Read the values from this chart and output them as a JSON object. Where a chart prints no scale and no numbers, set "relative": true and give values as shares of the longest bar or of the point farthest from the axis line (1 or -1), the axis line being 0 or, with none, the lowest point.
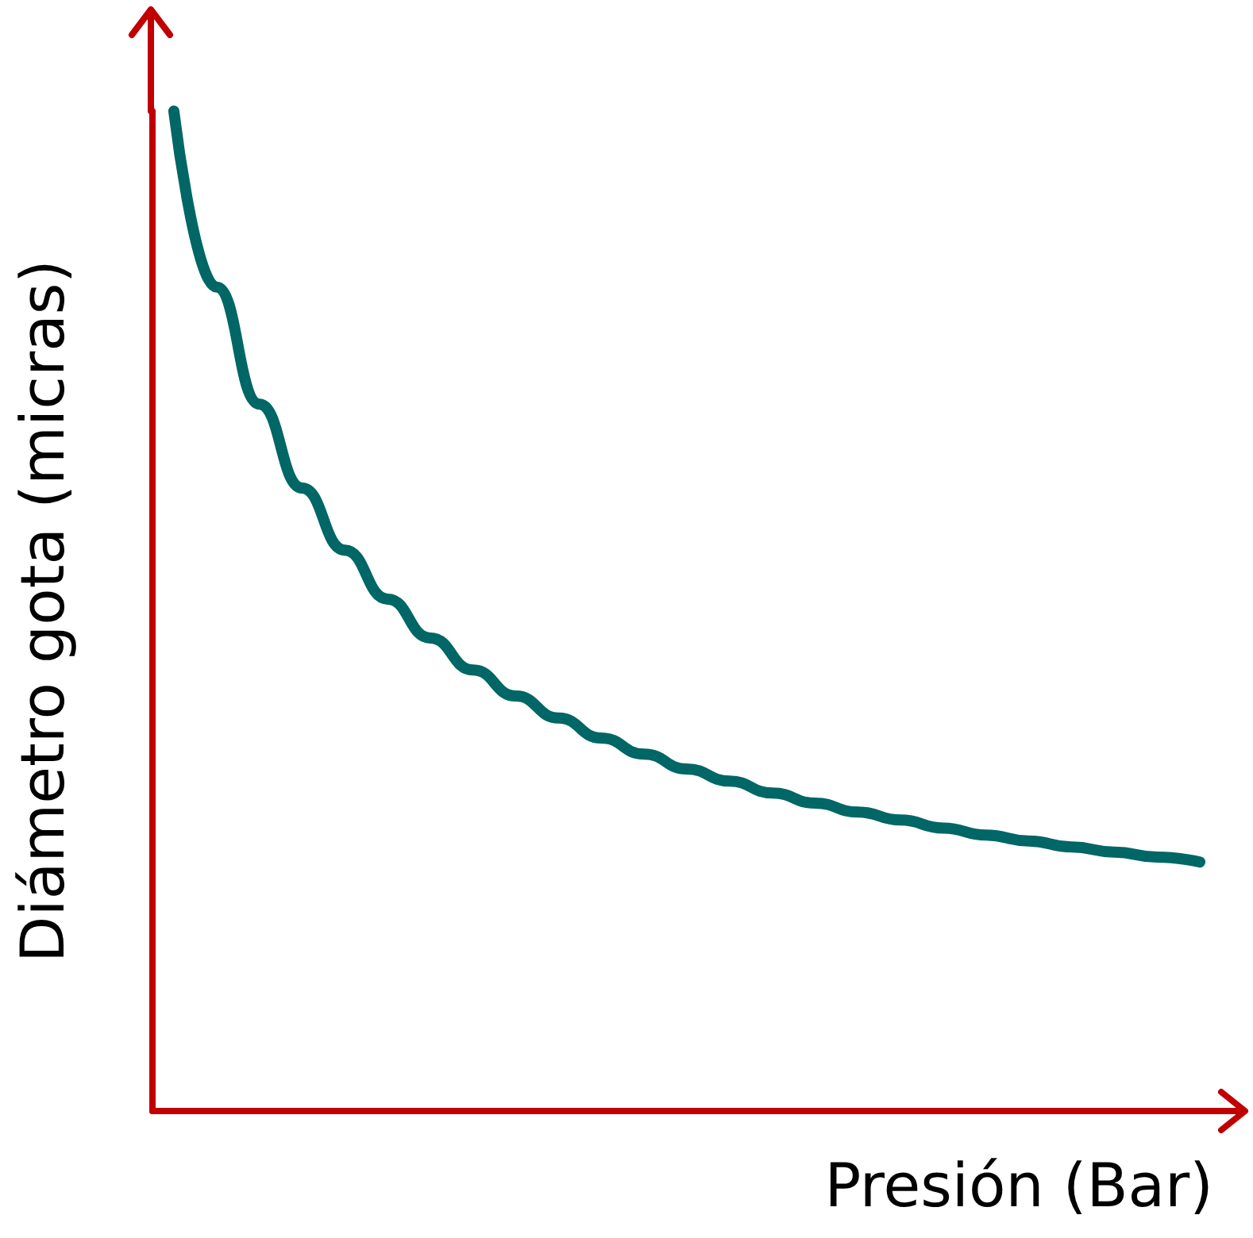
{
  "chart_data": {
    "type": "line",
    "xlabel": "Presión (Bar)",
    "ylabel": "Diámetro gota (micras)",
    "relative": true,
    "grid": false,
    "line_style": "solid",
    "categories": [
      null,
      null,
      null,
      null,
      null,
      null,
      null,
      null,
      null,
      null,
      null,
      null,
      null,
      null,
      null,
      null,
      null,
      null,
      null,
      null,
      null,
      null,
      null,
      null,
      null
    ],
    "series": [
      {
        "color": "#006666",
        "values": [
          1.0,
          0.824,
          0.707,
          0.623,
          0.561,
          0.512,
          0.473,
          0.441,
          0.415,
          0.393,
          0.373,
          0.357,
          0.342,
          0.33,
          0.318,
          0.308,
          0.299,
          0.291,
          0.283,
          0.276,
          0.27,
          0.264,
          0.259,
          0.254,
          0.249
        ]
      }
    ]
  }
}
